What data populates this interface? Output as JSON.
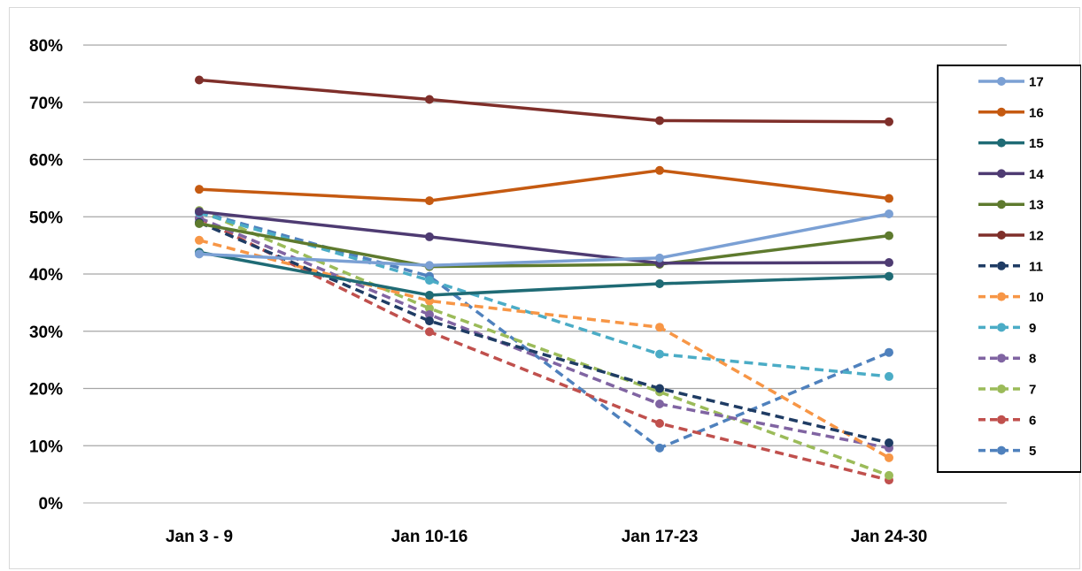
{
  "chart_data": {
    "type": "line",
    "title": "",
    "xlabel": "",
    "ylabel": "",
    "categories": [
      "Jan 3 - 9",
      "Jan 10-16",
      "Jan 17-23",
      "Jan 24-30"
    ],
    "ylim": [
      0,
      80
    ],
    "y_ticks": [
      "0%",
      "10%",
      "20%",
      "30%",
      "40%",
      "50%",
      "60%",
      "70%",
      "80%"
    ],
    "grid": true,
    "legend_position": "right",
    "series": [
      {
        "name": "17",
        "color": "#7ba0d4",
        "dashed": false,
        "values": [
          43.5,
          41.5,
          42.8,
          50.5
        ]
      },
      {
        "name": "16",
        "color": "#c55a11",
        "dashed": false,
        "values": [
          54.8,
          52.8,
          58.1,
          53.2
        ]
      },
      {
        "name": "15",
        "color": "#1f6b75",
        "dashed": false,
        "values": [
          43.8,
          36.3,
          38.3,
          39.6
        ]
      },
      {
        "name": "14",
        "color": "#4e3b72",
        "dashed": false,
        "values": [
          50.9,
          46.5,
          41.9,
          42.0
        ]
      },
      {
        "name": "13",
        "color": "#5e7a2e",
        "dashed": false,
        "values": [
          48.8,
          41.3,
          41.7,
          46.7
        ]
      },
      {
        "name": "12",
        "color": "#7f2f2a",
        "dashed": false,
        "values": [
          73.9,
          70.5,
          66.8,
          66.6
        ]
      },
      {
        "name": "11",
        "color": "#1f3c64",
        "dashed": true,
        "values": [
          49.0,
          31.8,
          20.0,
          10.5
        ]
      },
      {
        "name": "10",
        "color": "#f79646",
        "dashed": true,
        "values": [
          45.9,
          35.3,
          30.7,
          7.9
        ]
      },
      {
        "name": "9",
        "color": "#4bacc6",
        "dashed": true,
        "values": [
          50.7,
          38.9,
          26.0,
          22.1
        ]
      },
      {
        "name": "8",
        "color": "#8064a2",
        "dashed": true,
        "values": [
          49.8,
          32.9,
          17.3,
          9.6
        ]
      },
      {
        "name": "7",
        "color": "#9bbb59",
        "dashed": true,
        "values": [
          51.1,
          34.0,
          19.4,
          4.8
        ]
      },
      {
        "name": "6",
        "color": "#c0504d",
        "dashed": true,
        "values": [
          49.7,
          29.9,
          13.9,
          4.0
        ]
      },
      {
        "name": "5",
        "color": "#4f81bd",
        "dashed": true,
        "values": [
          50.9,
          39.6,
          9.6,
          26.3
        ]
      }
    ]
  }
}
